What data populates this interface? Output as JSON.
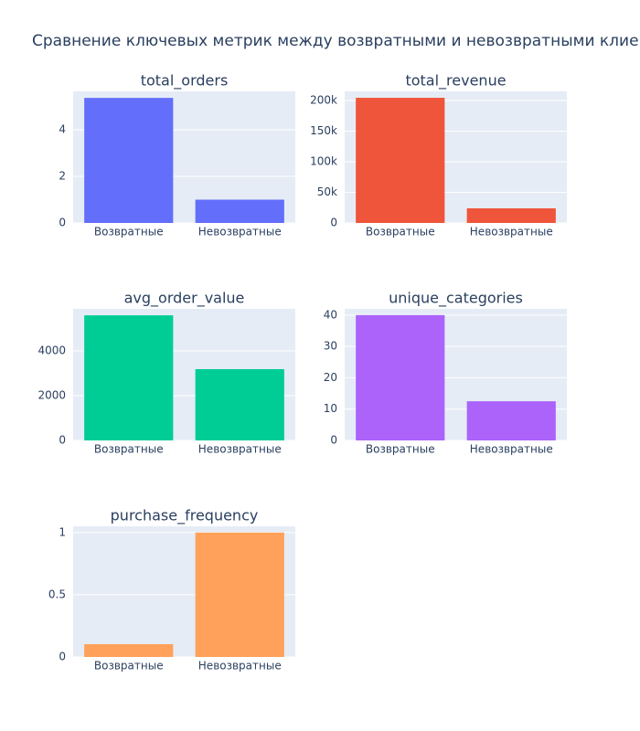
{
  "title": "Сравнение ключевых метрик между возвратными и невозвратными клиент",
  "chart_data": [
    {
      "type": "bar",
      "title": "total_orders",
      "categories": [
        "Возвратные",
        "Невозвратные"
      ],
      "values": [
        5.37,
        1
      ],
      "color": "#636efa",
      "ylim": [
        0,
        5.65
      ],
      "yticks": [
        0,
        2,
        4
      ],
      "grid": true
    },
    {
      "type": "bar",
      "title": "total_revenue",
      "categories": [
        "Возвратные",
        "Невозвратные"
      ],
      "values": [
        204500,
        23900
      ],
      "color": "#EF553B",
      "ylim": [
        0,
        215000
      ],
      "yticks": [
        0,
        {
          "value": 50000,
          "label": "50k"
        },
        {
          "value": 100000,
          "label": "100k"
        },
        {
          "value": 150000,
          "label": "150k"
        },
        {
          "value": 200000,
          "label": "200k"
        }
      ],
      "grid": true
    },
    {
      "type": "bar",
      "title": "avg_order_value",
      "categories": [
        "Возвратные",
        "Невозвратные"
      ],
      "values": [
        5590,
        3185
      ],
      "color": "#00cc96",
      "ylim": [
        0,
        5880
      ],
      "yticks": [
        0,
        2000,
        4000
      ],
      "grid": true
    },
    {
      "type": "bar",
      "title": "unique_categories",
      "categories": [
        "Возвратные",
        "Невозвратные"
      ],
      "values": [
        40,
        12.5
      ],
      "color": "#ab63fa",
      "ylim": [
        0,
        42
      ],
      "yticks": [
        0,
        10,
        20,
        30,
        40
      ],
      "grid": true
    },
    {
      "type": "bar",
      "title": "purchase_frequency",
      "categories": [
        "Возвратные",
        "Невозвратные"
      ],
      "values": [
        0.103,
        1
      ],
      "color": "#FFA15A",
      "ylim": [
        0,
        1.05
      ],
      "yticks": [
        0,
        0.5,
        1
      ],
      "grid": true
    }
  ]
}
